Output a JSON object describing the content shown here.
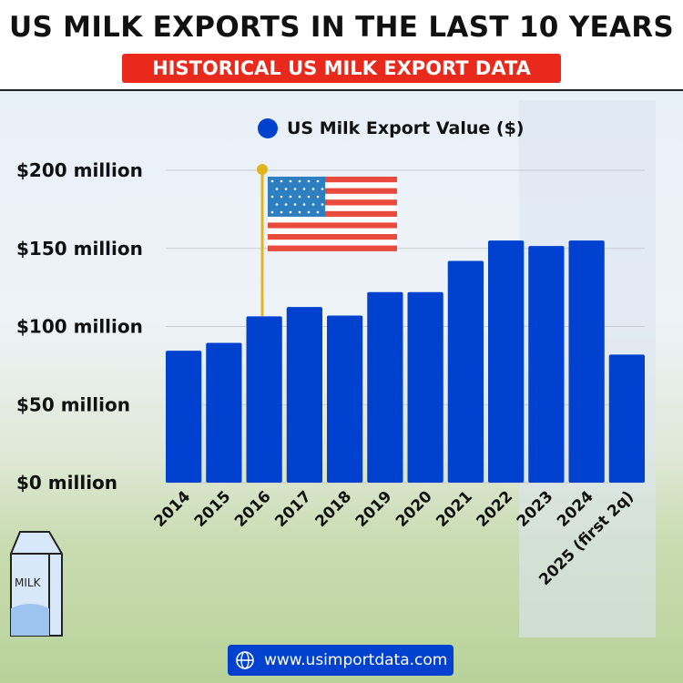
{
  "header": {
    "title": "US MILK EXPORTS IN THE LAST 10 YEARS",
    "subtitle": "HISTORICAL US MILK EXPORT DATA"
  },
  "footer": {
    "url": "www.usimportdata.com",
    "icon": "globe-icon"
  },
  "decor": {
    "carton_label": "MILK"
  },
  "colors": {
    "bar": "#0041d0",
    "accent": "#e8291c"
  },
  "chart_data": {
    "type": "bar",
    "title": "",
    "legend": {
      "label": "US Milk Export Value ($)",
      "placement": "top"
    },
    "categories": [
      "2014",
      "2015",
      "2016",
      "2017",
      "2018",
      "2019",
      "2020",
      "2021",
      "2022",
      "2023",
      "2024",
      "2025 (first 2q)"
    ],
    "series": [
      {
        "name": "US Milk Export Value ($)",
        "values": [
          84.5,
          89.5,
          106.5,
          112.5,
          107,
          122,
          122,
          142,
          155,
          151.5,
          155,
          82
        ]
      }
    ],
    "yunit": "million",
    "ylim": [
      0,
      200
    ],
    "yticks": [
      "$0 million",
      "$50 million",
      "$100 million",
      "$150 million",
      "$200 million"
    ],
    "ytick_values": [
      0,
      50,
      100,
      150,
      200
    ],
    "grid": true
  }
}
